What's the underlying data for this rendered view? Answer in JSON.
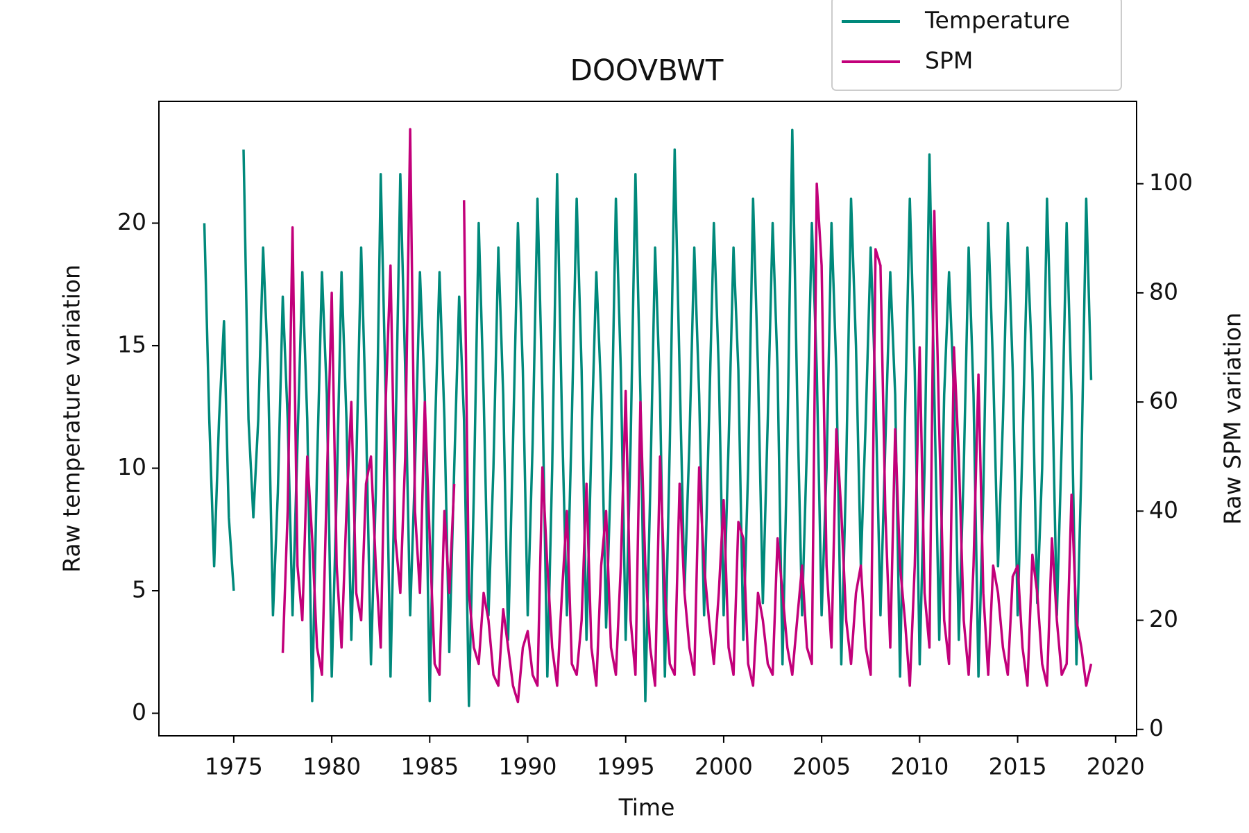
{
  "chart_data": {
    "type": "line",
    "title": "DOOVBWT",
    "xlabel": "Time",
    "ylabel": "Raw temperature variation",
    "y2label": "Raw SPM variation",
    "x": [
      1973.5,
      1973.75,
      1974,
      1974.25,
      1974.5,
      1974.75,
      1975,
      1975.25,
      1975.5,
      1975.75,
      1976,
      1976.25,
      1976.5,
      1976.75,
      1977,
      1977.25,
      1977.5,
      1977.75,
      1978,
      1978.25,
      1978.5,
      1978.75,
      1979,
      1979.25,
      1979.5,
      1979.75,
      1980,
      1980.25,
      1980.5,
      1980.75,
      1981,
      1981.25,
      1981.5,
      1981.75,
      1982,
      1982.25,
      1982.5,
      1982.75,
      1983,
      1983.25,
      1983.5,
      1983.75,
      1984,
      1984.25,
      1984.5,
      1984.75,
      1985,
      1985.25,
      1985.5,
      1985.75,
      1986,
      1986.25,
      1986.5,
      1986.75,
      1987,
      1987.25,
      1987.5,
      1987.75,
      1988,
      1988.25,
      1988.5,
      1988.75,
      1989,
      1989.25,
      1989.5,
      1989.75,
      1990,
      1990.25,
      1990.5,
      1990.75,
      1991,
      1991.25,
      1991.5,
      1991.75,
      1992,
      1992.25,
      1992.5,
      1992.75,
      1993,
      1993.25,
      1993.5,
      1993.75,
      1994,
      1994.25,
      1994.5,
      1994.75,
      1995,
      1995.25,
      1995.5,
      1995.75,
      1996,
      1996.25,
      1996.5,
      1996.75,
      1997,
      1997.25,
      1997.5,
      1997.75,
      1998,
      1998.25,
      1998.5,
      1998.75,
      1999,
      1999.25,
      1999.5,
      1999.75,
      2000,
      2000.25,
      2000.5,
      2000.75,
      2001,
      2001.25,
      2001.5,
      2001.75,
      2002,
      2002.25,
      2002.5,
      2002.75,
      2003,
      2003.25,
      2003.5,
      2003.75,
      2004,
      2004.25,
      2004.5,
      2004.75,
      2005,
      2005.25,
      2005.5,
      2005.75,
      2006,
      2006.25,
      2006.5,
      2006.75,
      2007,
      2007.25,
      2007.5,
      2007.75,
      2008,
      2008.25,
      2008.5,
      2008.75,
      2009,
      2009.25,
      2009.5,
      2009.75,
      2010,
      2010.25,
      2010.5,
      2010.75,
      2011,
      2011.25,
      2011.5,
      2011.75,
      2012,
      2012.25,
      2012.5,
      2012.75,
      2013,
      2013.25,
      2013.5,
      2013.75,
      2014,
      2014.25,
      2014.5,
      2014.75,
      2015,
      2015.25,
      2015.5,
      2015.75,
      2016,
      2016.25,
      2016.5,
      2016.75,
      2017,
      2017.25,
      2017.5,
      2017.75,
      2018,
      2018.25,
      2018.5,
      2018.75
    ],
    "series": [
      {
        "name": "Temperature",
        "color": "#00897b",
        "axis": "y",
        "values": [
          20,
          12,
          6,
          12,
          16,
          8,
          5,
          null,
          23,
          12,
          8,
          12,
          19,
          14,
          4,
          9,
          17,
          12,
          4,
          11,
          18,
          12,
          0.5,
          10,
          18,
          13,
          1.5,
          9,
          18,
          12,
          3,
          10,
          19,
          12,
          2,
          9,
          22,
          13,
          1.5,
          11,
          22,
          14,
          4,
          10,
          18,
          13,
          0.5,
          11,
          18,
          12,
          2.5,
          10,
          17,
          12,
          0.3,
          9,
          20,
          13,
          4,
          10,
          19,
          13,
          3,
          11,
          20,
          14,
          4,
          11,
          21,
          13,
          1.5,
          10,
          22,
          12,
          4,
          12,
          21,
          14,
          3,
          11,
          18,
          13,
          3.5,
          10,
          21,
          14,
          3,
          11,
          22,
          13,
          0.5,
          9,
          19,
          13,
          1.5,
          11,
          23,
          14,
          5,
          11,
          19,
          13,
          4,
          12,
          20,
          14,
          4,
          11,
          19,
          14,
          3,
          10,
          21,
          14,
          4.5,
          12,
          20,
          14,
          2,
          11,
          23.8,
          13,
          4,
          11,
          20,
          14,
          4,
          10,
          20,
          14,
          2,
          10,
          21,
          15,
          6,
          12,
          19,
          13,
          4,
          11,
          18,
          13,
          1.5,
          12,
          21,
          14,
          2,
          10,
          22.8,
          13,
          3,
          13,
          18,
          13,
          3,
          10,
          19,
          13,
          1.5,
          9,
          20,
          14,
          6,
          12,
          20,
          14,
          4,
          11,
          19,
          14,
          4.5,
          10,
          21,
          14,
          4,
          11,
          20,
          13,
          2,
          10,
          21,
          13.6
        ]
      },
      {
        "name": "SPM",
        "color": "#c2007a",
        "axis": "y2",
        "values": [
          null,
          null,
          null,
          null,
          null,
          null,
          null,
          null,
          null,
          null,
          null,
          null,
          null,
          null,
          null,
          null,
          14,
          40,
          92,
          30,
          20,
          50,
          35,
          15,
          10,
          45,
          80,
          30,
          15,
          40,
          60,
          25,
          20,
          45,
          50,
          30,
          15,
          60,
          85,
          35,
          25,
          50,
          110,
          40,
          25,
          60,
          35,
          12,
          10,
          40,
          25,
          45,
          null,
          97,
          25,
          15,
          12,
          25,
          20,
          10,
          8,
          22,
          15,
          8,
          5,
          15,
          18,
          10,
          8,
          48,
          30,
          15,
          8,
          25,
          40,
          12,
          10,
          20,
          45,
          15,
          8,
          30,
          40,
          15,
          10,
          30,
          62,
          20,
          10,
          60,
          30,
          15,
          8,
          50,
          25,
          12,
          10,
          45,
          25,
          15,
          10,
          48,
          30,
          20,
          12,
          25,
          42,
          15,
          10,
          38,
          35,
          12,
          8,
          25,
          20,
          12,
          10,
          35,
          25,
          15,
          10,
          20,
          30,
          15,
          12,
          100,
          85,
          30,
          15,
          55,
          40,
          20,
          12,
          25,
          30,
          15,
          10,
          88,
          85,
          40,
          15,
          55,
          30,
          20,
          8,
          30,
          70,
          25,
          15,
          95,
          55,
          20,
          12,
          70,
          50,
          20,
          10,
          30,
          65,
          25,
          10,
          30,
          25,
          15,
          10,
          28,
          30,
          15,
          8,
          32,
          25,
          12,
          8,
          35,
          20,
          10,
          12,
          43,
          20,
          15,
          8,
          12
        ]
      }
    ],
    "xlim": [
      1971.18,
      2021.07
    ],
    "xticks": [
      1975,
      1980,
      1985,
      1990,
      1995,
      2000,
      2005,
      2010,
      2015,
      2020
    ],
    "ylim": [
      -0.92,
      24.97
    ],
    "yticks": [
      0,
      5,
      10,
      15,
      20
    ],
    "y2lim": [
      -1.18,
      115.1
    ],
    "y2ticks": [
      0,
      20,
      40,
      60,
      80,
      100
    ]
  }
}
